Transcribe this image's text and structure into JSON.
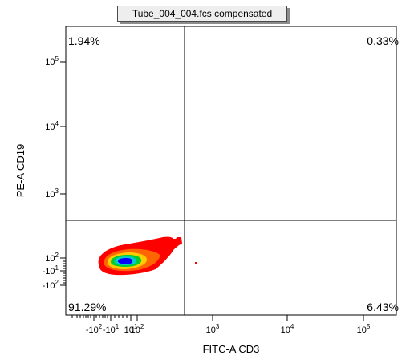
{
  "title": "Tube_004_004.fcs compensated",
  "chart_data": {
    "type": "scatter",
    "subtype": "flow-cytometry-density-plot",
    "xlabel": "FITC-A CD3",
    "ylabel": "PE-A CD19",
    "xscale": "biexponential",
    "yscale": "biexponential",
    "xlim": [
      -200,
      200000
    ],
    "ylim": [
      -200,
      200000
    ],
    "x_ticks": [
      {
        "base": "-10",
        "exp": "2"
      },
      {
        "base": "-10",
        "exp": "1"
      },
      {
        "base": "10",
        "exp": "1"
      },
      {
        "base": "10",
        "exp": "2"
      },
      {
        "base": "10",
        "exp": "3"
      },
      {
        "base": "10",
        "exp": "4"
      },
      {
        "base": "10",
        "exp": "5"
      }
    ],
    "y_ticks": [
      {
        "base": "10",
        "exp": "5"
      },
      {
        "base": "10",
        "exp": "4"
      },
      {
        "base": "10",
        "exp": "3"
      },
      {
        "base": "10",
        "exp": "2"
      },
      {
        "base": "-10",
        "exp": "1"
      },
      {
        "base": "-10",
        "exp": "2"
      }
    ],
    "quadrant_gate": {
      "x": 380,
      "y": 300
    },
    "quadrants": {
      "upper_left": "1.94%",
      "upper_right": "0.33%",
      "lower_left": "91.29%",
      "lower_right": "6.43%"
    },
    "density_colors": [
      "#ff0000",
      "#ff6600",
      "#ffcc00",
      "#00cc33",
      "#00cccc",
      "#0000ff"
    ]
  }
}
